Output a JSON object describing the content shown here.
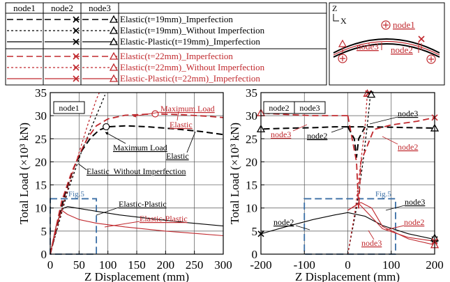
{
  "legend": {
    "headers": [
      "node1",
      "node2",
      "node3"
    ],
    "entries": [
      {
        "label": "Elastic(t=19mm)_Imperfection",
        "color": "#000000",
        "dash": "long"
      },
      {
        "label": "Elastic(t=19mm)_Without Imperfection",
        "color": "#000000",
        "dash": "short"
      },
      {
        "label": "Elastic-Plastic(t=19mm)_Imperfection",
        "color": "#000000",
        "dash": "solid"
      },
      {
        "label": "Elastic(t=22mm)_Imperfection",
        "color": "#c0282d",
        "dash": "long"
      },
      {
        "label": "Elastic(t=22mm)_Without Imperfection",
        "color": "#c0282d",
        "dash": "short"
      },
      {
        "label": "Elastic-Plastic(t=22mm)_Imperfection",
        "color": "#c0282d",
        "dash": "solid"
      }
    ],
    "marker_names": [
      "node1-marker",
      "node2-marker",
      "node3-marker"
    ]
  },
  "schematic": {
    "axis_z": "Z",
    "axis_x": "X",
    "node1_label": "node1",
    "node2_label": "node2",
    "node3_label": "node3"
  },
  "colors": {
    "black": "#000000",
    "red": "#c0282d",
    "blue": "#3a6ea5"
  },
  "chart_data": [
    {
      "type": "line",
      "xlabel": "Z Displacement (mm)",
      "ylabel": "Total Load (×10³ kN)",
      "xlim": [
        0,
        300
      ],
      "ylim": [
        0,
        35
      ],
      "xticks": [
        0,
        50,
        100,
        150,
        200,
        250,
        300
      ],
      "yticks": [
        0,
        5,
        10,
        15,
        20,
        25,
        30,
        35
      ],
      "grid": true,
      "box_label": "node1",
      "zoom_box": {
        "label": "Fig.5",
        "x": [
          0,
          80
        ],
        "y": [
          0,
          12
        ]
      },
      "series": [
        {
          "style": "e19_imp",
          "points": [
            [
              0,
              0
            ],
            [
              25,
              12.8
            ],
            [
              40,
              18.5
            ],
            [
              55,
              22.5
            ],
            [
              70,
              25.2
            ],
            [
              85,
              26.9
            ],
            [
              100,
              27.6
            ],
            [
              130,
              27.8
            ],
            [
              170,
              27.6
            ],
            [
              220,
              27.1
            ],
            [
              260,
              26.6
            ],
            [
              300,
              25.9
            ]
          ]
        },
        {
          "style": "e19_noimp",
          "points": [
            [
              0,
              0
            ],
            [
              30,
              13.5
            ],
            [
              55,
              22.5
            ],
            [
              80,
              30
            ],
            [
              95,
              34.5
            ]
          ]
        },
        {
          "style": "ep19_imp",
          "points": [
            [
              0,
              0
            ],
            [
              10,
              6
            ],
            [
              20,
              9.8
            ],
            [
              30,
              10.3
            ],
            [
              45,
              10
            ],
            [
              80,
              9.3
            ],
            [
              120,
              8.5
            ],
            [
              180,
              7.6
            ],
            [
              240,
              6.8
            ],
            [
              300,
              6.1
            ]
          ]
        },
        {
          "style": "e22_imp",
          "points": [
            [
              0,
              0
            ],
            [
              20,
              11.5
            ],
            [
              35,
              17
            ],
            [
              50,
              21.5
            ],
            [
              65,
              25.2
            ],
            [
              80,
              27.8
            ],
            [
              100,
              29.3
            ],
            [
              130,
              30.1
            ],
            [
              180,
              30.4
            ],
            [
              230,
              30.2
            ],
            [
              270,
              29.9
            ],
            [
              300,
              29.6
            ]
          ]
        },
        {
          "style": "e22_noimp",
          "points": [
            [
              0,
              0
            ],
            [
              25,
              12
            ],
            [
              45,
              20
            ],
            [
              65,
              28
            ],
            [
              80,
              33.5
            ],
            [
              85,
              35
            ]
          ]
        },
        {
          "style": "ep22_imp",
          "points": [
            [
              0,
              0
            ],
            [
              10,
              6
            ],
            [
              20,
              9.5
            ],
            [
              30,
              8.6
            ],
            [
              50,
              7.5
            ],
            [
              80,
              6.7
            ],
            [
              130,
              5.9
            ],
            [
              200,
              5
            ],
            [
              260,
              4.4
            ],
            [
              300,
              4
            ]
          ]
        }
      ],
      "markers": [
        {
          "shape": "circle",
          "color": "#000000",
          "x": 97,
          "y": 27.6
        },
        {
          "shape": "circle",
          "color": "#c0282d",
          "x": 182,
          "y": 30.4
        }
      ],
      "annotations": [
        {
          "text": "Maximum Load",
          "color": "#c0282d",
          "underline": true
        },
        {
          "text": "Elastic",
          "color": "#c0282d",
          "underline": true
        },
        {
          "text": "Maximum Load",
          "color": "#000000",
          "underline": true
        },
        {
          "text": "Elastic",
          "color": "#000000",
          "underline": true
        },
        {
          "text": "Elastic_Without Imperfection",
          "color": "#000000",
          "underline": true
        },
        {
          "text": "Elastic-Plastic",
          "color": "#000000",
          "underline": true
        },
        {
          "text": "Elastic-Plastic",
          "color": "#c0282d",
          "underline": true
        }
      ]
    },
    {
      "type": "line",
      "xlabel": "Z Displacement (mm)",
      "ylabel": "Total Load (×10³ kN)",
      "xlim": [
        -200,
        200
      ],
      "ylim": [
        0,
        35
      ],
      "xticks": [
        -200,
        -100,
        0,
        100,
        200
      ],
      "yticks": [
        0,
        5,
        10,
        15,
        20,
        25,
        30,
        35
      ],
      "grid": true,
      "box_labels": [
        "node2",
        "node3"
      ],
      "zoom_box": {
        "label": "Fig.5",
        "x": [
          -100,
          110
        ],
        "y": [
          0,
          12
        ]
      },
      "series": [
        {
          "style": "e19_imp",
          "node": "node2",
          "points": [
            [
              0,
              27.6
            ],
            [
              -30,
              27.6
            ],
            [
              -80,
              27.4
            ],
            [
              -130,
              27.3
            ],
            [
              -170,
              27.2
            ],
            [
              -200,
              27.1
            ]
          ]
        },
        {
          "style": "e19_imp",
          "node": "node3",
          "points": [
            [
              0,
              27.6
            ],
            [
              40,
              27.6
            ],
            [
              100,
              27.5
            ],
            [
              150,
              27.4
            ],
            [
              200,
              27.3
            ]
          ]
        },
        {
          "style": "e19_imp",
          "node": "dip",
          "points": [
            [
              0,
              27.6
            ],
            [
              15,
              25
            ],
            [
              20,
              21
            ],
            [
              25,
              25
            ],
            [
              40,
              27.6
            ]
          ]
        },
        {
          "style": "e19_noimp",
          "node": "node1",
          "points": [
            [
              0,
              0
            ],
            [
              20,
              10
            ],
            [
              35,
              20
            ],
            [
              45,
              28
            ],
            [
              52,
              34.5
            ]
          ]
        },
        {
          "style": "ep19_imp",
          "node": "node2",
          "points": [
            [
              0,
              9
            ],
            [
              -30,
              8.5
            ],
            [
              -80,
              7.5
            ],
            [
              -140,
              6
            ],
            [
              -200,
              4.4
            ]
          ]
        },
        {
          "style": "ep19_imp",
          "node": "node3",
          "points": [
            [
              0,
              9
            ],
            [
              40,
              8.2
            ],
            [
              80,
              6.2
            ],
            [
              140,
              4.4
            ],
            [
              200,
              3.2
            ]
          ]
        },
        {
          "style": "e22_imp",
          "node": "node2",
          "points": [
            [
              0,
              30
            ],
            [
              20,
              20
            ],
            [
              25,
              10
            ],
            [
              30,
              20
            ],
            [
              60,
              27
            ],
            [
              100,
              28
            ],
            [
              160,
              28.8
            ],
            [
              200,
              29.6
            ]
          ]
        },
        {
          "style": "e22_imp",
          "node": "node3",
          "points": [
            [
              0,
              30
            ],
            [
              -40,
              30
            ],
            [
              -80,
              30
            ],
            [
              -130,
              30.2
            ],
            [
              -170,
              30.4
            ],
            [
              -200,
              30.6
            ]
          ]
        },
        {
          "style": "e22_noimp",
          "node": "node1",
          "points": [
            [
              0,
              0
            ],
            [
              18,
              10
            ],
            [
              30,
              20
            ],
            [
              40,
              28
            ],
            [
              45,
              34.8
            ]
          ]
        },
        {
          "style": "ep22_imp",
          "node": "node2",
          "points": [
            [
              0,
              9.5
            ],
            [
              25,
              11
            ],
            [
              45,
              9
            ],
            [
              80,
              5.5
            ],
            [
              140,
              3.6
            ],
            [
              200,
              2.8
            ]
          ]
        },
        {
          "style": "ep22_imp",
          "node": "node3",
          "points": [
            [
              0,
              9.5
            ],
            [
              30,
              11.2
            ],
            [
              55,
              10
            ],
            [
              80,
              6
            ],
            [
              140,
              3.3
            ],
            [
              200,
              2
            ]
          ]
        }
      ],
      "markers": [
        {
          "shape": "x",
          "color": "#000000",
          "x": -200,
          "y": 4.4
        },
        {
          "shape": "triangle",
          "color": "#000000",
          "x": -200,
          "y": 27.1
        },
        {
          "shape": "triangle",
          "color": "#c0282d",
          "x": -200,
          "y": 30.6
        },
        {
          "shape": "x",
          "color": "#c0282d",
          "x": 200,
          "y": 29.6
        },
        {
          "shape": "triangle",
          "color": "#000000",
          "x": 200,
          "y": 27.3
        },
        {
          "shape": "x",
          "color": "#000000",
          "x": 200,
          "y": 3.2
        },
        {
          "shape": "triangle",
          "color": "#000000",
          "x": 200,
          "y": 3.5
        },
        {
          "shape": "x",
          "color": "#c0282d",
          "x": 200,
          "y": 2.8
        },
        {
          "shape": "triangle",
          "color": "#c0282d",
          "x": 200,
          "y": 2
        },
        {
          "shape": "triangle",
          "color": "#c0282d",
          "x": 45,
          "y": 34.8
        },
        {
          "shape": "x",
          "color": "#c0282d",
          "x": 47,
          "y": 34.8
        },
        {
          "shape": "x",
          "color": "#000000",
          "x": 52,
          "y": 34.6
        },
        {
          "shape": "triangle",
          "color": "#000000",
          "x": 54,
          "y": 34.6
        }
      ],
      "annotations": [
        {
          "text": "node3",
          "color": "#000000",
          "underline": true
        },
        {
          "text": "node3",
          "color": "#c0282d",
          "underline": true
        },
        {
          "text": "node2",
          "color": "#000000",
          "underline": true
        },
        {
          "text": "node2",
          "color": "#c0282d",
          "underline": true
        },
        {
          "text": "node3",
          "color": "#000000",
          "underline": true
        },
        {
          "text": "node2",
          "color": "#000000",
          "underline": true
        },
        {
          "text": "node2",
          "color": "#c0282d",
          "underline": true
        },
        {
          "text": "node3",
          "color": "#c0282d",
          "underline": true
        }
      ]
    }
  ]
}
